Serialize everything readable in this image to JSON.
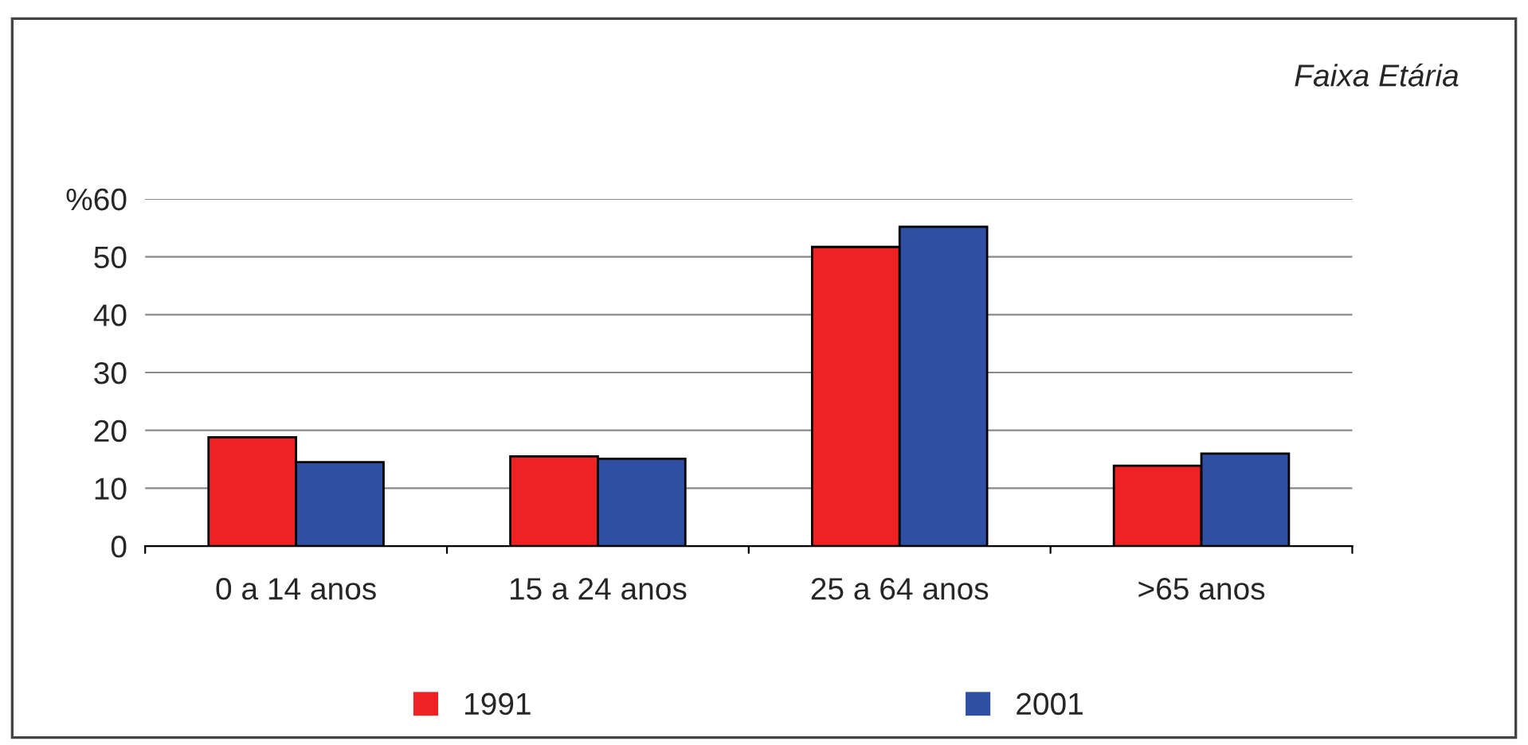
{
  "chart_data": {
    "type": "bar",
    "categories": [
      "0 a 14 anos",
      "15 a 24 anos",
      "25 a 64 anos",
      ">65 anos"
    ],
    "series": [
      {
        "name": "1991",
        "color": "#ee2222",
        "values": [
          18.8,
          15.5,
          51.7,
          13.9
        ]
      },
      {
        "name": "2001",
        "color": "#2e4fa3",
        "values": [
          14.5,
          15.1,
          55.2,
          16.0
        ]
      }
    ],
    "ylim": [
      0,
      60
    ],
    "yticks": [
      0,
      10,
      20,
      30,
      40,
      50,
      {
        "value": 60,
        "label": "%60"
      }
    ],
    "grid": "y",
    "legend": "bottom",
    "annotations": [
      "Faixa Etária"
    ]
  }
}
